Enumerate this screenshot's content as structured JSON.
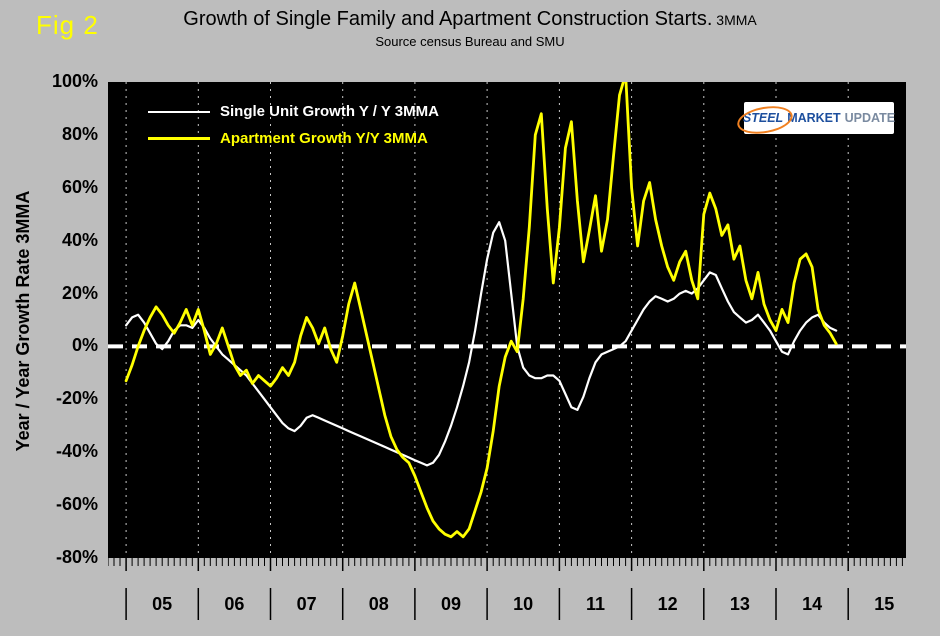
{
  "header": {
    "fig_label": "Fig 2",
    "title_main": "Growth of Single Family and Apartment Construction Starts.",
    "title_suffix": " 3MMA",
    "subtitle": "Source census Bureau and SMU"
  },
  "logo": {
    "steel": "STEEL",
    "market": "MARKET",
    "update": "UPDATE"
  },
  "chart_data": {
    "type": "line",
    "title": "Growth of Single Family and Apartment Construction Starts. 3MMA",
    "subtitle": "Source census Bureau and SMU",
    "ylabel": "Year / Year Growth Rate 3MMA",
    "background": "#000000",
    "x_domain": [
      2004.75,
      2015.8
    ],
    "y_domain": [
      -80,
      100
    ],
    "y_ticks": [
      100,
      80,
      60,
      40,
      20,
      0,
      -20,
      -40,
      -60,
      -80
    ],
    "y_tick_suffix": "%",
    "grid_years": [
      2005,
      2006,
      2007,
      2008,
      2009,
      2010,
      2011,
      2012,
      2013,
      2014,
      2015
    ],
    "x_year_labels": [
      "05",
      "06",
      "07",
      "08",
      "09",
      "10",
      "11",
      "12",
      "13",
      "14",
      "15"
    ],
    "zero_line": {
      "color": "#ffffff",
      "style": "dashed",
      "width": 4
    },
    "grid_color": "#c8c8c8",
    "x_start": 2005.0,
    "x_step": "monthly",
    "legend_position": "top-left",
    "series": [
      {
        "name": "Single Unit Growth Y / Y 3MMA",
        "color": "#ffffff",
        "width": 2.2,
        "values": [
          8,
          11,
          12,
          9,
          5,
          1,
          -1,
          2,
          6,
          8,
          8,
          7,
          10,
          7,
          3,
          0,
          -3,
          -5,
          -7,
          -9,
          -11,
          -14,
          -17,
          -20,
          -23,
          -26,
          -29,
          -31,
          -32,
          -30,
          -27,
          -26,
          -27,
          -28,
          -29,
          -30,
          -31,
          -32,
          -33,
          -34,
          -35,
          -36,
          -37,
          -38,
          -39,
          -40,
          -41,
          -42,
          -43,
          -44,
          -45,
          -44,
          -41,
          -36,
          -30,
          -23,
          -15,
          -6,
          6,
          20,
          33,
          43,
          47,
          40,
          20,
          0,
          -8,
          -11,
          -12,
          -12,
          -11,
          -11,
          -13,
          -18,
          -23,
          -24,
          -19,
          -12,
          -6,
          -3,
          -2,
          -1,
          0,
          2,
          6,
          10,
          14,
          17,
          19,
          18,
          17,
          18,
          20,
          21,
          20,
          22,
          25,
          28,
          27,
          22,
          17,
          13,
          11,
          9,
          10,
          12,
          9,
          6,
          2,
          -2,
          -3,
          2,
          6,
          9,
          11,
          12,
          9,
          7,
          6
        ]
      },
      {
        "name": "Apartment Growth Y/Y 3MMA",
        "color": "#ffff00",
        "width": 2.8,
        "values": [
          -13,
          -7,
          0,
          6,
          11,
          15,
          12,
          8,
          5,
          9,
          14,
          8,
          14,
          6,
          -3,
          1,
          7,
          0,
          -7,
          -11,
          -9,
          -14,
          -11,
          -13,
          -15,
          -12,
          -8,
          -11,
          -6,
          4,
          11,
          7,
          1,
          7,
          -1,
          -6,
          4,
          16,
          24,
          14,
          4,
          -6,
          -16,
          -26,
          -34,
          -39,
          -42,
          -44,
          -49,
          -55,
          -61,
          -66,
          -69,
          -71,
          -72,
          -70,
          -72,
          -69,
          -62,
          -55,
          -46,
          -32,
          -15,
          -4,
          2,
          -2,
          18,
          45,
          80,
          88,
          52,
          24,
          45,
          75,
          85,
          55,
          32,
          44,
          57,
          36,
          48,
          72,
          95,
          103,
          60,
          38,
          55,
          62,
          48,
          38,
          30,
          25,
          32,
          36,
          25,
          18,
          50,
          58,
          52,
          42,
          46,
          33,
          38,
          25,
          18,
          28,
          16,
          10,
          6,
          14,
          9,
          24,
          33,
          35,
          30,
          14,
          8,
          5,
          1
        ]
      }
    ]
  }
}
